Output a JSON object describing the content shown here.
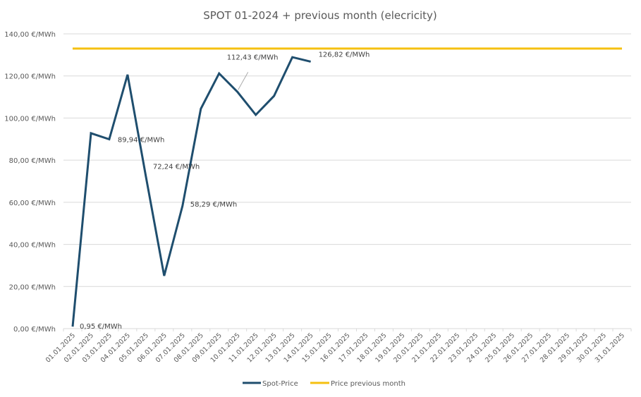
{
  "chart_data": {
    "type": "line",
    "title": "SPOT 01-2024 + previous month (elecricity)",
    "xlabel": "",
    "ylabel": "",
    "ylim": [
      0,
      140
    ],
    "yticks": [
      0,
      20,
      40,
      60,
      80,
      100,
      120,
      140
    ],
    "ytick_labels": [
      "0,00 €/MWh",
      "20,00 €/MWh",
      "40,00 €/MWh",
      "60,00 €/MWh",
      "80,00 €/MWh",
      "100,00 €/MWh",
      "120,00 €/MWh",
      "140,00 €/MWh"
    ],
    "grid": true,
    "legend_position": "bottom",
    "categories": [
      "01.01.2025",
      "02.01.2025",
      "03.01.2025",
      "04.01.2025",
      "05.01.2025",
      "06.01.2025",
      "07.01.2025",
      "08.01.2025",
      "09.01.2025",
      "10.01.2025",
      "11.01.2025",
      "12.01.2025",
      "13.01.2025",
      "14.01.2025",
      "15.01.2025",
      "16.01.2025",
      "17.01.2025",
      "18.01.2025",
      "19.01.2025",
      "20.01.2025",
      "21.01.2025",
      "22.01.2025",
      "23.01.2025",
      "24.01.2025",
      "25.01.2025",
      "26.01.2025",
      "27.01.2025",
      "28.01.2025",
      "29.01.2025",
      "30.01.2025",
      "31.01.2025"
    ],
    "series": [
      {
        "name": "Spot-Price",
        "color": "#1f4e6e",
        "values": [
          0.95,
          92.8,
          89.94,
          120.6,
          72.24,
          25.1,
          58.29,
          104.4,
          121.2,
          112.43,
          101.5,
          110.5,
          128.9,
          126.82,
          null,
          null,
          null,
          null,
          null,
          null,
          null,
          null,
          null,
          null,
          null,
          null,
          null,
          null,
          null,
          null,
          null
        ]
      },
      {
        "name": "Price previous month",
        "color": "#f5c010",
        "values": [
          133,
          133,
          133,
          133,
          133,
          133,
          133,
          133,
          133,
          133,
          133,
          133,
          133,
          133,
          133,
          133,
          133,
          133,
          133,
          133,
          133,
          133,
          133,
          133,
          133,
          133,
          133,
          133,
          133,
          133,
          133
        ]
      }
    ],
    "data_labels": [
      {
        "index": 0,
        "text": "0,95 €/MWh"
      },
      {
        "index": 2,
        "text": "89,94 €/MWh"
      },
      {
        "index": 4,
        "text": "72,24 €/MWh"
      },
      {
        "index": 6,
        "text": "58,29 €/MWh"
      },
      {
        "index": 9,
        "text": "112,43 €/MWh",
        "leader": true
      },
      {
        "index": 13,
        "text": "126,82 €/MWh"
      }
    ]
  }
}
